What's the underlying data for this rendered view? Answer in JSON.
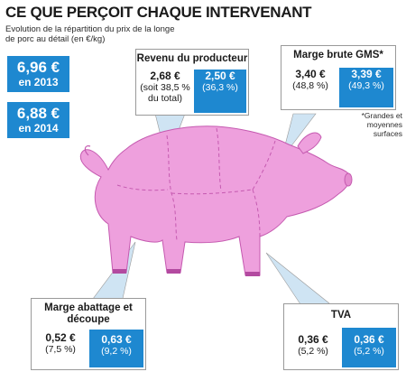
{
  "title": "CE QUE PERÇOIT CHAQUE INTERVENANT",
  "subtitle": "Evolution de la répartition du prix de la longe de porc au détail (en €/kg)",
  "totals": [
    {
      "value": "6,96 €",
      "label": "en 2013"
    },
    {
      "value": "6,88 €",
      "label": "en 2014"
    }
  ],
  "producteur": {
    "header": "Revenu du producteur",
    "v2013": "2,68 €",
    "p2013": "(soit 38,5 % du total)",
    "v2014": "2,50 €",
    "p2014": "(36,3 %)"
  },
  "gms": {
    "header": "Marge brute GMS*",
    "v2013": "3,40 €",
    "p2013": "(48,8 %)",
    "v2014": "3,39 €",
    "p2014": "(49,3 %)"
  },
  "footnote": "*Grandes et moyennes surfaces",
  "abattage": {
    "header": "Marge abattage et découpe",
    "v2013": "0,52 €",
    "p2013": "(7,5 %)",
    "v2014": "0,63 €",
    "p2014": "(9,2 %)"
  },
  "tva": {
    "header": "TVA",
    "v2013": "0,36 €",
    "p2013": "(5,2 %)",
    "v2014": "0,36 €",
    "p2014": "(5,2 %)"
  },
  "colors": {
    "pig": "#eea0dd",
    "pig_outline": "#c55ab0",
    "blue": "#1e88d0",
    "pointer": "#cfe4f3"
  }
}
